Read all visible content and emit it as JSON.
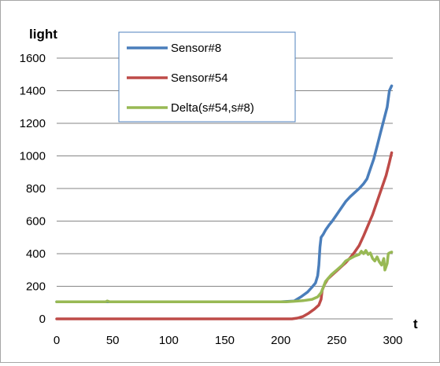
{
  "chart_data": {
    "type": "line",
    "title": "",
    "xlabel": "t",
    "ylabel": "light",
    "xlim": [
      0,
      300
    ],
    "ylim": [
      0,
      1600
    ],
    "x_ticks": [
      0,
      50,
      100,
      150,
      200,
      250,
      300
    ],
    "y_ticks": [
      0,
      200,
      400,
      600,
      800,
      1000,
      1200,
      1400,
      1600
    ],
    "grid": "horizontal",
    "legend": "top-center",
    "series": [
      {
        "name": "Sensor#8",
        "color": "#4a7ebb",
        "points": [
          [
            0,
            105
          ],
          [
            100,
            105
          ],
          [
            200,
            105
          ],
          [
            212,
            110
          ],
          [
            218,
            135
          ],
          [
            224,
            165
          ],
          [
            228,
            195
          ],
          [
            231,
            220
          ],
          [
            233,
            265
          ],
          [
            234,
            330
          ],
          [
            235,
            440
          ],
          [
            236,
            500
          ],
          [
            238,
            520
          ],
          [
            240,
            545
          ],
          [
            243,
            575
          ],
          [
            246,
            600
          ],
          [
            250,
            640
          ],
          [
            254,
            680
          ],
          [
            258,
            720
          ],
          [
            262,
            750
          ],
          [
            266,
            775
          ],
          [
            270,
            800
          ],
          [
            274,
            830
          ],
          [
            277,
            860
          ],
          [
            280,
            920
          ],
          [
            283,
            980
          ],
          [
            286,
            1060
          ],
          [
            289,
            1140
          ],
          [
            292,
            1220
          ],
          [
            295,
            1300
          ],
          [
            297,
            1400
          ],
          [
            299,
            1430
          ]
        ]
      },
      {
        "name": "Sensor#54",
        "color": "#be4b48",
        "points": [
          [
            0,
            0
          ],
          [
            100,
            0
          ],
          [
            210,
            0
          ],
          [
            215,
            5
          ],
          [
            220,
            15
          ],
          [
            225,
            35
          ],
          [
            230,
            60
          ],
          [
            234,
            85
          ],
          [
            236,
            120
          ],
          [
            237,
            175
          ],
          [
            239,
            210
          ],
          [
            242,
            245
          ],
          [
            246,
            270
          ],
          [
            250,
            295
          ],
          [
            254,
            320
          ],
          [
            258,
            345
          ],
          [
            262,
            375
          ],
          [
            266,
            410
          ],
          [
            270,
            450
          ],
          [
            274,
            510
          ],
          [
            278,
            575
          ],
          [
            282,
            640
          ],
          [
            286,
            720
          ],
          [
            290,
            800
          ],
          [
            294,
            880
          ],
          [
            297,
            960
          ],
          [
            299,
            1020
          ]
        ]
      },
      {
        "name": "Delta(s#54,s#8)",
        "color": "#98b954",
        "points": [
          [
            0,
            105
          ],
          [
            44,
            105
          ],
          [
            45,
            110
          ],
          [
            47,
            105
          ],
          [
            100,
            105
          ],
          [
            205,
            105
          ],
          [
            212,
            108
          ],
          [
            220,
            112
          ],
          [
            228,
            120
          ],
          [
            233,
            135
          ],
          [
            236,
            160
          ],
          [
            240,
            230
          ],
          [
            245,
            270
          ],
          [
            250,
            300
          ],
          [
            255,
            330
          ],
          [
            258,
            355
          ],
          [
            262,
            370
          ],
          [
            266,
            385
          ],
          [
            270,
            395
          ],
          [
            272,
            415
          ],
          [
            274,
            400
          ],
          [
            276,
            420
          ],
          [
            278,
            395
          ],
          [
            280,
            405
          ],
          [
            282,
            370
          ],
          [
            284,
            355
          ],
          [
            286,
            380
          ],
          [
            288,
            350
          ],
          [
            290,
            330
          ],
          [
            292,
            370
          ],
          [
            293,
            300
          ],
          [
            295,
            340
          ],
          [
            296,
            400
          ],
          [
            297,
            405
          ],
          [
            299,
            410
          ]
        ]
      }
    ]
  }
}
